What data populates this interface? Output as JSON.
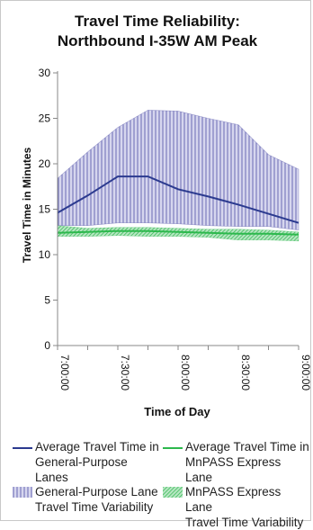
{
  "chart_data": {
    "type": "line",
    "title_line1": "Travel Time Reliability:",
    "title_line2": "Northbound I-35W AM Peak",
    "xlabel": "Time of Day",
    "ylabel": "Travel Time in Minutes",
    "ylim": [
      0,
      30
    ],
    "yticks": [
      "0",
      "5",
      "10",
      "15",
      "20",
      "25",
      "30"
    ],
    "xticks": [
      "7:00:00",
      "7:30:00",
      "8:00:00",
      "8:30:00",
      "9:00:00"
    ],
    "x": [
      "7:00",
      "7:15",
      "7:30",
      "7:45",
      "8:00",
      "8:15",
      "8:30",
      "8:45",
      "9:00"
    ],
    "grid": false,
    "series": [
      {
        "name": "Average Travel Time in General-Purpose Lanes",
        "kind": "line",
        "color": "#2b3a8f",
        "values": [
          14.6,
          16.5,
          18.6,
          18.6,
          17.2,
          16.4,
          15.5,
          14.5,
          13.5
        ]
      },
      {
        "name": "Average Travel Time in MnPASS Express Lane",
        "kind": "line",
        "color": "#2db84d",
        "values": [
          12.4,
          12.5,
          12.6,
          12.6,
          12.5,
          12.4,
          12.3,
          12.3,
          12.2
        ]
      },
      {
        "name": "General-Purpose Lane Travel Time Variability",
        "kind": "band",
        "color": "#6a6ab4",
        "fill": "#d6d6ee",
        "upper": [
          18.4,
          21.3,
          24.0,
          25.9,
          25.8,
          25.0,
          24.3,
          21.0,
          19.4
        ],
        "lower": [
          13.2,
          13.2,
          13.5,
          13.5,
          13.4,
          13.2,
          13.1,
          13.1,
          12.7
        ]
      },
      {
        "name": "MnPASS Express Lane Travel Time Variability",
        "kind": "band",
        "color": "#2db84d",
        "fill": "#b8e6c3",
        "upper": [
          13.2,
          12.9,
          13.0,
          13.0,
          12.9,
          12.8,
          12.8,
          12.7,
          12.5
        ],
        "lower": [
          12.0,
          12.0,
          12.1,
          12.0,
          12.0,
          11.9,
          11.6,
          11.6,
          11.5
        ]
      }
    ]
  },
  "legend": [
    {
      "label": "Average Travel Time in\nGeneral-Purpose Lanes",
      "swatch": "line",
      "color": "#2b3a8f"
    },
    {
      "label": "Average Travel Time in\nMnPASS Express Lane",
      "swatch": "line",
      "color": "#2db84d"
    },
    {
      "label": "General-Purpose Lane\nTravel Time Variability",
      "swatch": "vstripes",
      "color": "#6a6ab4"
    },
    {
      "label": "MnPASS Express Lane\nTravel Time Variability",
      "swatch": "diag",
      "color": "#2db84d"
    }
  ]
}
